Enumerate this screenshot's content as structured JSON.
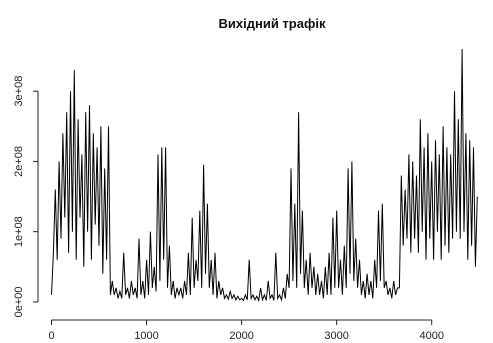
{
  "chart_data": {
    "type": "line",
    "title": "Вихідний трафік",
    "xlabel": "",
    "ylabel": "",
    "xlim": [
      -100,
      4550
    ],
    "ylim": [
      -20000000,
      350000000
    ],
    "x_ticks": [
      {
        "value": 0,
        "label": "0"
      },
      {
        "value": 1000,
        "label": "1000"
      },
      {
        "value": 2000,
        "label": "2000"
      },
      {
        "value": 3000,
        "label": "3000"
      },
      {
        "value": 4000,
        "label": "4000"
      }
    ],
    "y_ticks": [
      {
        "value": 0,
        "label": "0e+00"
      },
      {
        "value": 100000000,
        "label": "1e+08"
      },
      {
        "value": 200000000,
        "label": "2e+08"
      },
      {
        "value": 300000000,
        "label": "3e+08"
      }
    ],
    "grid": false,
    "legend": "none",
    "series": [
      {
        "name": "",
        "color": "#000000",
        "x": [
          0,
          20,
          40,
          60,
          80,
          100,
          120,
          140,
          160,
          180,
          200,
          220,
          240,
          260,
          280,
          300,
          320,
          340,
          360,
          380,
          400,
          420,
          440,
          460,
          480,
          500,
          520,
          540,
          560,
          580,
          600,
          620,
          640,
          660,
          680,
          700,
          720,
          740,
          760,
          780,
          800,
          820,
          840,
          860,
          880,
          900,
          920,
          940,
          960,
          980,
          1000,
          1020,
          1040,
          1060,
          1080,
          1100,
          1120,
          1140,
          1160,
          1180,
          1200,
          1220,
          1240,
          1260,
          1280,
          1300,
          1320,
          1340,
          1360,
          1380,
          1400,
          1420,
          1440,
          1460,
          1480,
          1500,
          1520,
          1540,
          1560,
          1580,
          1600,
          1620,
          1640,
          1660,
          1680,
          1700,
          1720,
          1740,
          1760,
          1780,
          1800,
          1820,
          1840,
          1860,
          1880,
          1900,
          1920,
          1940,
          1960,
          1980,
          2000,
          2020,
          2040,
          2060,
          2080,
          2100,
          2120,
          2140,
          2160,
          2180,
          2200,
          2220,
          2240,
          2260,
          2280,
          2300,
          2320,
          2340,
          2360,
          2380,
          2400,
          2420,
          2440,
          2460,
          2480,
          2500,
          2520,
          2540,
          2560,
          2580,
          2600,
          2620,
          2640,
          2660,
          2680,
          2700,
          2720,
          2740,
          2760,
          2780,
          2800,
          2820,
          2840,
          2860,
          2880,
          2900,
          2920,
          2940,
          2960,
          2980,
          3000,
          3020,
          3040,
          3060,
          3080,
          3100,
          3120,
          3140,
          3160,
          3180,
          3200,
          3220,
          3240,
          3260,
          3280,
          3300,
          3320,
          3340,
          3360,
          3380,
          3400,
          3420,
          3440,
          3460,
          3480,
          3500,
          3520,
          3540,
          3560,
          3580,
          3600,
          3620,
          3640,
          3660,
          3680,
          3700,
          3720,
          3740,
          3760,
          3780,
          3800,
          3820,
          3840,
          3860,
          3880,
          3900,
          3920,
          3940,
          3960,
          3980,
          4000,
          4020,
          4040,
          4060,
          4080,
          4100,
          4120,
          4140,
          4160,
          4180,
          4200,
          4220,
          4240,
          4260,
          4280,
          4300,
          4320,
          4340,
          4360,
          4380,
          4400,
          4420,
          4440,
          4460,
          4480
        ],
        "values": [
          10000000,
          70000000,
          160000000,
          60000000,
          200000000,
          90000000,
          240000000,
          120000000,
          270000000,
          70000000,
          300000000,
          100000000,
          330000000,
          60000000,
          260000000,
          120000000,
          210000000,
          50000000,
          270000000,
          100000000,
          280000000,
          60000000,
          240000000,
          110000000,
          220000000,
          80000000,
          250000000,
          40000000,
          190000000,
          60000000,
          250000000,
          10000000,
          30000000,
          10000000,
          20000000,
          5000000,
          15000000,
          5000000,
          70000000,
          10000000,
          20000000,
          5000000,
          30000000,
          10000000,
          20000000,
          5000000,
          90000000,
          10000000,
          30000000,
          5000000,
          60000000,
          10000000,
          100000000,
          20000000,
          50000000,
          15000000,
          210000000,
          30000000,
          220000000,
          60000000,
          220000000,
          20000000,
          80000000,
          10000000,
          30000000,
          5000000,
          20000000,
          10000000,
          20000000,
          5000000,
          30000000,
          10000000,
          70000000,
          10000000,
          120000000,
          20000000,
          60000000,
          30000000,
          130000000,
          20000000,
          195000000,
          40000000,
          140000000,
          20000000,
          60000000,
          10000000,
          70000000,
          5000000,
          30000000,
          10000000,
          20000000,
          5000000,
          10000000,
          4000000,
          15000000,
          5000000,
          10000000,
          3000000,
          8000000,
          3000000,
          5000000,
          2000000,
          10000000,
          3000000,
          60000000,
          5000000,
          10000000,
          3000000,
          8000000,
          2000000,
          20000000,
          3000000,
          10000000,
          2000000,
          30000000,
          5000000,
          10000000,
          2000000,
          70000000,
          5000000,
          10000000,
          3000000,
          20000000,
          5000000,
          40000000,
          20000000,
          190000000,
          30000000,
          140000000,
          20000000,
          270000000,
          40000000,
          130000000,
          20000000,
          60000000,
          10000000,
          70000000,
          20000000,
          50000000,
          10000000,
          40000000,
          10000000,
          30000000,
          5000000,
          50000000,
          10000000,
          70000000,
          10000000,
          120000000,
          20000000,
          130000000,
          20000000,
          60000000,
          10000000,
          80000000,
          20000000,
          190000000,
          40000000,
          200000000,
          30000000,
          90000000,
          20000000,
          60000000,
          10000000,
          30000000,
          5000000,
          40000000,
          10000000,
          30000000,
          5000000,
          60000000,
          20000000,
          130000000,
          30000000,
          140000000,
          20000000,
          30000000,
          10000000,
          20000000,
          5000000,
          30000000,
          10000000,
          20000000,
          20000000,
          180000000,
          80000000,
          160000000,
          90000000,
          210000000,
          70000000,
          200000000,
          90000000,
          180000000,
          70000000,
          260000000,
          100000000,
          220000000,
          60000000,
          240000000,
          90000000,
          200000000,
          60000000,
          230000000,
          100000000,
          210000000,
          60000000,
          250000000,
          80000000,
          220000000,
          70000000,
          210000000,
          90000000,
          300000000,
          100000000,
          260000000,
          90000000,
          360000000,
          100000000,
          240000000,
          60000000,
          230000000,
          80000000,
          220000000,
          50000000,
          150000000
        ]
      }
    ]
  }
}
